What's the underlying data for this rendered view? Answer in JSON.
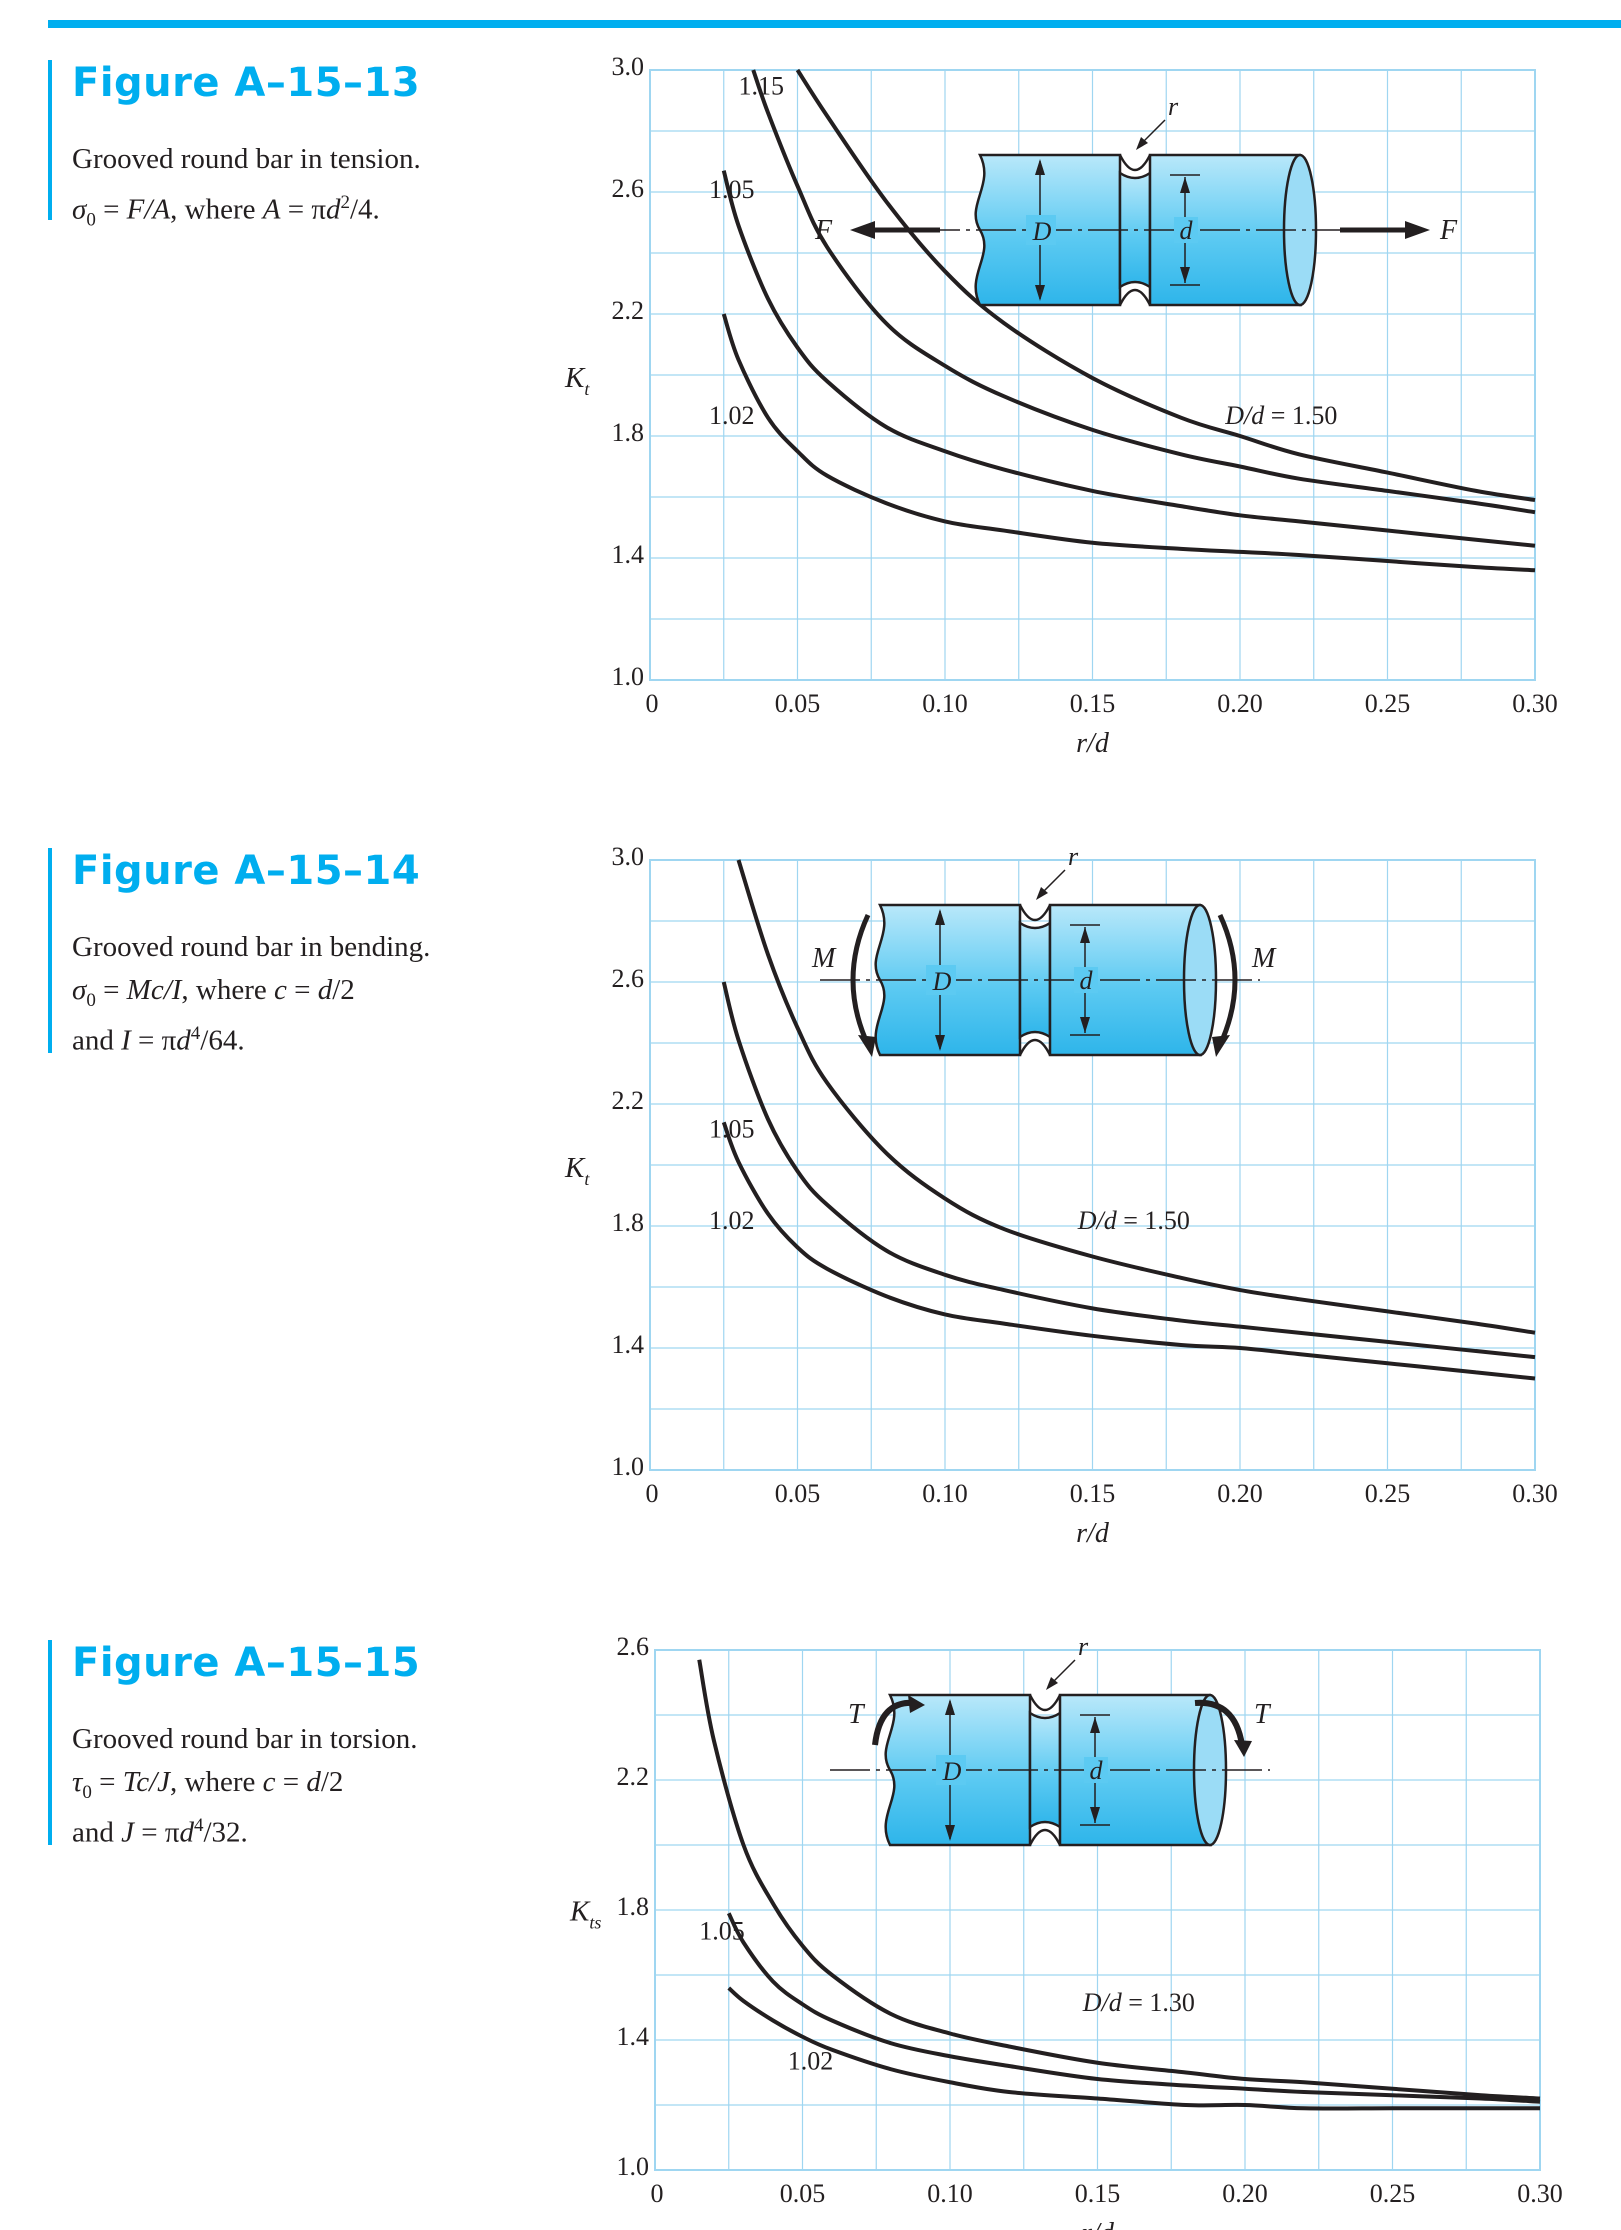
{
  "colors": {
    "accent": "#00aeef",
    "grid": "#9fd6f1",
    "curve": "#231f20",
    "part_fill": "#7fd3f4"
  },
  "figures": [
    {
      "title": "Figure A–15–13",
      "caption": {
        "line1": "Grooved round bar in tension.",
        "line2_a": "σ",
        "line2_b": "0",
        "line2_c": " = ",
        "line2_d": "F/A",
        "line2_e": ", where ",
        "line2_f": "A",
        "line2_g": " = π",
        "line2_h": "d",
        "line2_i": "2",
        "line2_j": "/4."
      },
      "diagram": {
        "load_left": "F",
        "load_right": "F",
        "label_D": "D",
        "label_d": "d",
        "label_r": "r"
      }
    },
    {
      "title": "Figure A–15–14",
      "caption": {
        "line1_a": "σ",
        "line1_b": "0",
        "line1_c": " = ",
        "line1_d": "Mc/I",
        "line1_e": ", where ",
        "line1_f": "c",
        "line1_g": " = ",
        "line1_h": "d",
        "line1_i": "/2",
        "line0": "Grooved round bar in bending.",
        "line2_a": "and ",
        "line2_b": "I",
        "line2_c": " = π",
        "line2_d": "d",
        "line2_e": "4",
        "line2_f": "/64."
      },
      "diagram": {
        "load_left": "M",
        "load_right": "M",
        "label_D": "D",
        "label_d": "d",
        "label_r": "r"
      }
    },
    {
      "title": "Figure A–15–15",
      "caption": {
        "line0": "Grooved round bar in torsion.",
        "line1_a": "τ",
        "line1_b": "0",
        "line1_c": " = ",
        "line1_d": "Tc/J",
        "line1_e": ", where ",
        "line1_f": "c",
        "line1_g": " = ",
        "line1_h": "d",
        "line1_i": "/2",
        "line2_a": "and ",
        "line2_b": "J",
        "line2_c": " = π",
        "line2_d": "d",
        "line2_e": "4",
        "line2_f": "/32."
      },
      "diagram": {
        "load_left": "T",
        "load_right": "T",
        "label_D": "D",
        "label_d": "d",
        "label_r": "r"
      }
    }
  ],
  "chart_data": [
    {
      "type": "line",
      "ylabel_main": "K",
      "ylabel_sub": "t",
      "xlabel": "r/d",
      "xlim": [
        0,
        0.3
      ],
      "ylim": [
        1.0,
        3.0
      ],
      "x_ticks": [
        "0",
        "0.05",
        "0.10",
        "0.15",
        "0.20",
        "0.25",
        "0.30"
      ],
      "y_ticks": [
        "1.0",
        "1.4",
        "1.8",
        "2.2",
        "2.6",
        "3.0"
      ],
      "grid": true,
      "series": [
        {
          "name": "D/d = 1.50",
          "x": [
            0.05,
            0.06,
            0.08,
            0.1,
            0.12,
            0.15,
            0.18,
            0.2,
            0.22,
            0.25,
            0.28,
            0.3
          ],
          "y": [
            3.0,
            2.85,
            2.57,
            2.34,
            2.17,
            1.99,
            1.86,
            1.8,
            1.74,
            1.68,
            1.62,
            1.59
          ]
        },
        {
          "name": "1.15",
          "x": [
            0.035,
            0.04,
            0.05,
            0.06,
            0.08,
            0.1,
            0.12,
            0.15,
            0.18,
            0.2,
            0.22,
            0.25,
            0.28,
            0.3
          ],
          "y": [
            3.0,
            2.86,
            2.62,
            2.42,
            2.17,
            2.03,
            1.93,
            1.82,
            1.74,
            1.7,
            1.66,
            1.62,
            1.58,
            1.55
          ]
        },
        {
          "name": "1.05",
          "x": [
            0.025,
            0.03,
            0.04,
            0.05,
            0.06,
            0.08,
            0.1,
            0.12,
            0.15,
            0.18,
            0.2,
            0.22,
            0.25,
            0.28,
            0.3
          ],
          "y": [
            2.67,
            2.49,
            2.25,
            2.09,
            1.98,
            1.83,
            1.75,
            1.69,
            1.62,
            1.57,
            1.54,
            1.52,
            1.49,
            1.46,
            1.44
          ]
        },
        {
          "name": "1.02",
          "x": [
            0.025,
            0.03,
            0.04,
            0.05,
            0.06,
            0.08,
            0.1,
            0.12,
            0.15,
            0.18,
            0.2,
            0.22,
            0.25,
            0.28,
            0.3
          ],
          "y": [
            2.2,
            2.05,
            1.86,
            1.75,
            1.67,
            1.58,
            1.52,
            1.49,
            1.45,
            1.43,
            1.42,
            1.41,
            1.39,
            1.37,
            1.36
          ]
        }
      ],
      "labels": [
        "1.15",
        "1.05",
        "1.02",
        "D/d = 1.50"
      ]
    },
    {
      "type": "line",
      "ylabel_main": "K",
      "ylabel_sub": "t",
      "xlabel": "r/d",
      "xlim": [
        0,
        0.3
      ],
      "ylim": [
        1.0,
        3.0
      ],
      "x_ticks": [
        "0",
        "0.05",
        "0.10",
        "0.15",
        "0.20",
        "0.25",
        "0.30"
      ],
      "y_ticks": [
        "1.0",
        "1.4",
        "1.8",
        "2.2",
        "2.6",
        "3.0"
      ],
      "grid": true,
      "series": [
        {
          "name": "D/d = 1.50",
          "x": [
            0.03,
            0.04,
            0.05,
            0.06,
            0.08,
            0.1,
            0.12,
            0.15,
            0.18,
            0.2,
            0.22,
            0.25,
            0.28,
            0.3
          ],
          "y": [
            3.0,
            2.69,
            2.45,
            2.27,
            2.04,
            1.89,
            1.79,
            1.7,
            1.63,
            1.59,
            1.56,
            1.52,
            1.48,
            1.45
          ]
        },
        {
          "name": "1.05",
          "x": [
            0.025,
            0.03,
            0.04,
            0.05,
            0.06,
            0.08,
            0.1,
            0.12,
            0.15,
            0.18,
            0.2,
            0.22,
            0.25,
            0.28,
            0.3
          ],
          "y": [
            2.6,
            2.41,
            2.15,
            1.98,
            1.87,
            1.72,
            1.64,
            1.59,
            1.53,
            1.49,
            1.47,
            1.45,
            1.42,
            1.39,
            1.37
          ]
        },
        {
          "name": "1.02",
          "x": [
            0.025,
            0.03,
            0.04,
            0.05,
            0.06,
            0.08,
            0.1,
            0.12,
            0.15,
            0.18,
            0.2,
            0.22,
            0.25,
            0.28,
            0.3
          ],
          "y": [
            2.14,
            2.01,
            1.84,
            1.73,
            1.66,
            1.57,
            1.51,
            1.48,
            1.44,
            1.41,
            1.4,
            1.38,
            1.35,
            1.32,
            1.3
          ]
        }
      ],
      "labels": [
        "1.05",
        "1.02",
        "D/d = 1.50"
      ]
    },
    {
      "type": "line",
      "ylabel_main": "K",
      "ylabel_sub": "ts",
      "xlabel": "r/d",
      "xlim": [
        0,
        0.3
      ],
      "ylim": [
        1.0,
        2.6
      ],
      "x_ticks": [
        "0",
        "0.05",
        "0.10",
        "0.15",
        "0.20",
        "0.25",
        "0.30"
      ],
      "y_ticks": [
        "1.0",
        "1.4",
        "1.8",
        "2.2",
        "2.6"
      ],
      "grid": true,
      "series": [
        {
          "name": "D/d = 1.30",
          "x": [
            0.015,
            0.02,
            0.03,
            0.04,
            0.05,
            0.06,
            0.08,
            0.1,
            0.12,
            0.15,
            0.18,
            0.2,
            0.22,
            0.25,
            0.28,
            0.3
          ],
          "y": [
            2.57,
            2.32,
            2.0,
            1.82,
            1.69,
            1.6,
            1.48,
            1.42,
            1.38,
            1.33,
            1.3,
            1.28,
            1.27,
            1.25,
            1.23,
            1.22
          ]
        },
        {
          "name": "1.05",
          "x": [
            0.025,
            0.03,
            0.04,
            0.05,
            0.06,
            0.08,
            0.1,
            0.12,
            0.15,
            0.18,
            0.2,
            0.22,
            0.25,
            0.28,
            0.3
          ],
          "y": [
            1.79,
            1.7,
            1.58,
            1.51,
            1.46,
            1.39,
            1.35,
            1.32,
            1.28,
            1.26,
            1.25,
            1.24,
            1.23,
            1.22,
            1.21
          ]
        },
        {
          "name": "1.02",
          "x": [
            0.025,
            0.03,
            0.04,
            0.05,
            0.06,
            0.08,
            0.1,
            0.12,
            0.15,
            0.18,
            0.2,
            0.22,
            0.25,
            0.28,
            0.3
          ],
          "y": [
            1.56,
            1.52,
            1.46,
            1.41,
            1.37,
            1.31,
            1.27,
            1.24,
            1.22,
            1.2,
            1.2,
            1.19,
            1.19,
            1.19,
            1.19
          ]
        }
      ],
      "labels": [
        "1.05",
        "1.02",
        "D/d = 1.30"
      ]
    }
  ]
}
